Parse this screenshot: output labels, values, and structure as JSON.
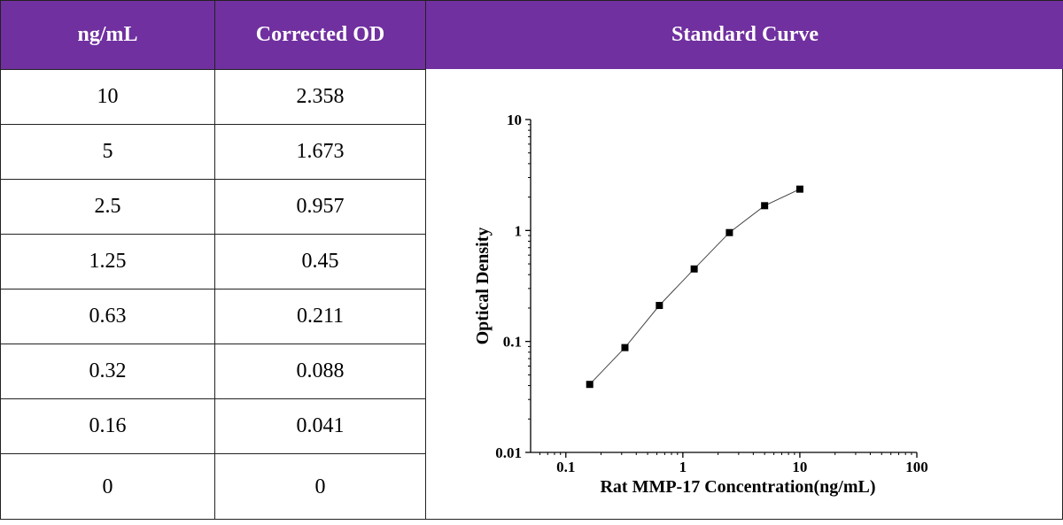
{
  "table": {
    "headers": [
      "ng/mL",
      "Corrected OD",
      "Standard Curve"
    ],
    "rows": [
      {
        "conc": "10",
        "od": "2.358"
      },
      {
        "conc": "5",
        "od": "1.673"
      },
      {
        "conc": "2.5",
        "od": "0.957"
      },
      {
        "conc": "1.25",
        "od": "0.45"
      },
      {
        "conc": "0.63",
        "od": "0.211"
      },
      {
        "conc": "0.32",
        "od": "0.088"
      },
      {
        "conc": "0.16",
        "od": "0.041"
      },
      {
        "conc": "0",
        "od": "0"
      }
    ]
  },
  "colors": {
    "header_bg": "#7030a0",
    "header_text": "#ffffff",
    "marker": "#000000"
  },
  "chart_data": {
    "type": "scatter",
    "title": "Standard Curve",
    "xlabel": "Rat MMP-17 Concentration(ng/mL)",
    "ylabel": "Optical Density",
    "xscale": "log",
    "yscale": "log",
    "xlim": [
      0.05,
      100
    ],
    "ylim": [
      0.01,
      10
    ],
    "x_ticks": [
      "0.1",
      "1",
      "10",
      "100"
    ],
    "y_ticks": [
      "0.01",
      "0.1",
      "1",
      "10"
    ],
    "grid": false,
    "legend": "none",
    "marker": "square",
    "fit_line": true,
    "series": [
      {
        "x": [
          0.16,
          0.32,
          0.63,
          1.25,
          2.5,
          5,
          10
        ],
        "y": [
          0.041,
          0.088,
          0.211,
          0.45,
          0.957,
          1.673,
          2.358
        ]
      }
    ]
  }
}
